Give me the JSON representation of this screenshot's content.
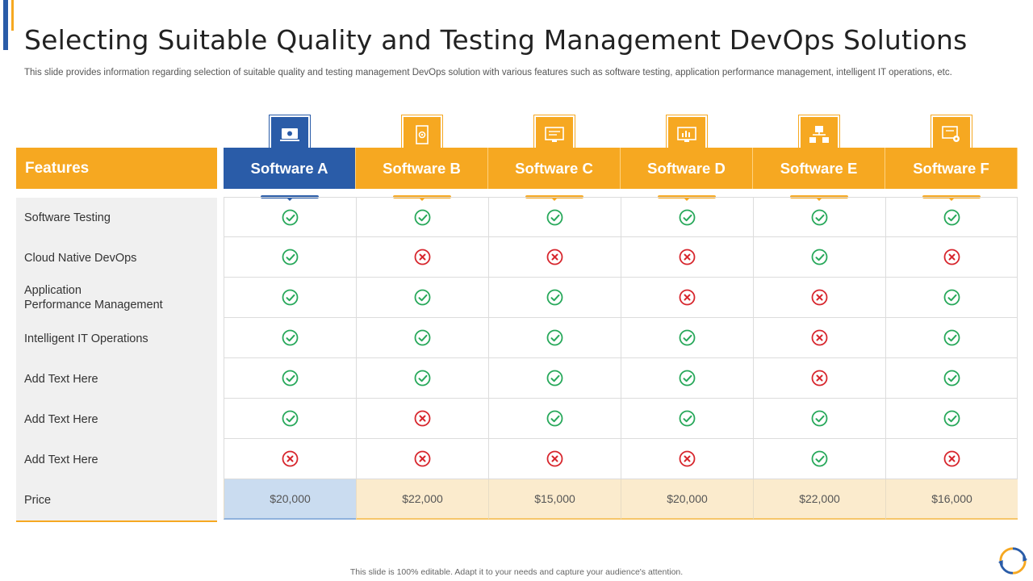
{
  "title": "Selecting Suitable Quality and Testing Management DevOps Solutions",
  "subtitle": "This slide provides information regarding selection of suitable quality and testing management DevOps solution with various features such as software testing, application performance management, intelligent IT operations, etc.",
  "colors": {
    "orange": "#f6a821",
    "blue": "#2a5ca8",
    "check": "#27a85a",
    "cross": "#d7262d",
    "price_blue": "#cadcf0",
    "price_orange": "#fbebcd"
  },
  "features_header": "Features",
  "features": [
    "Software Testing",
    "Cloud Native DevOps",
    "Application\nPerformance Management",
    "Intelligent IT Operations",
    "Add Text Here",
    "Add Text Here",
    "Add Text Here"
  ],
  "price_label": "Price",
  "software": [
    {
      "name": "Software A",
      "icon": "laptop-gear-icon",
      "highlight": true,
      "marks": [
        "check",
        "check",
        "check",
        "check",
        "check",
        "check",
        "cross"
      ],
      "price": "$20,000"
    },
    {
      "name": "Software B",
      "icon": "document-gear-icon",
      "highlight": false,
      "marks": [
        "check",
        "cross",
        "check",
        "check",
        "check",
        "cross",
        "cross"
      ],
      "price": "$22,000"
    },
    {
      "name": "Software C",
      "icon": "monitor-settings-icon",
      "highlight": false,
      "marks": [
        "check",
        "cross",
        "check",
        "check",
        "check",
        "check",
        "cross"
      ],
      "price": "$15,000"
    },
    {
      "name": "Software D",
      "icon": "monitor-chart-icon",
      "highlight": false,
      "marks": [
        "check",
        "cross",
        "cross",
        "check",
        "check",
        "check",
        "cross"
      ],
      "price": "$20,000"
    },
    {
      "name": "Software E",
      "icon": "network-nodes-icon",
      "highlight": false,
      "marks": [
        "check",
        "check",
        "cross",
        "cross",
        "cross",
        "check",
        "check"
      ],
      "price": "$22,000"
    },
    {
      "name": "Software F",
      "icon": "screen-gear-icon",
      "highlight": false,
      "marks": [
        "check",
        "cross",
        "check",
        "check",
        "check",
        "check",
        "cross"
      ],
      "price": "$16,000"
    }
  ],
  "footer": "This slide is 100% editable. Adapt it to your needs and capture your audience's attention."
}
